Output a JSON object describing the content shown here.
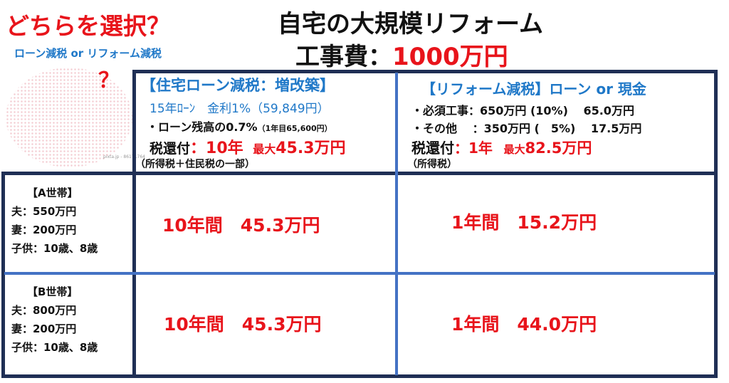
{
  "header": {
    "question": "どちらを選択？",
    "subtitle": "ローン減税 or リフォーム減税",
    "question_mark": "？",
    "title": "自宅の大規模リフォーム",
    "cost_label": "工事費：",
    "cost_value": "1000万円",
    "illustration_credit": "pixta.jp - 86171764"
  },
  "columns": {
    "loan": {
      "heading": "【住宅ローン減税：増改築】",
      "loan_terms": "15年ﾛｰﾝ　金利1%（59,849円）",
      "rate_line": "・ローン残高の0.7%",
      "rate_note": "（1年目65,600円）",
      "refund_label": "税還付",
      "refund_years": "：10年",
      "refund_max_label": "最大",
      "refund_max_value": "45.3万円",
      "tax_note": "（所得税＋住民税の一部）"
    },
    "reform": {
      "heading": "【リフォーム減税】ローン or 現金",
      "line1": "・必須工事：650万円 (10%)　 65.0万円",
      "line2": "・その他　 ：350万円 (　5%)　 17.5万円",
      "refund_label": "税還付",
      "refund_years": "：1年",
      "refund_max_label": "最大",
      "refund_max_value": "82.5万円",
      "tax_note": "（所得税）"
    }
  },
  "rows": [
    {
      "name": "【A世帯】",
      "husband": "夫：550万円",
      "wife": "妻：200万円",
      "children": "子供：10歳、8歳",
      "loan_result": "10年間　45.3万円",
      "reform_result": "1年間　15.2万円"
    },
    {
      "name": "【B世帯】",
      "husband": "夫：800万円",
      "wife": "妻：200万円",
      "children": "子供：10歳、8歳",
      "loan_result": "10年間　45.3万円",
      "reform_result": "1年間　44.0万円"
    }
  ],
  "colors": {
    "red": "#e8141b",
    "blue": "#1f78c8",
    "frame": "#1f2f55",
    "divider": "#4472c4"
  }
}
